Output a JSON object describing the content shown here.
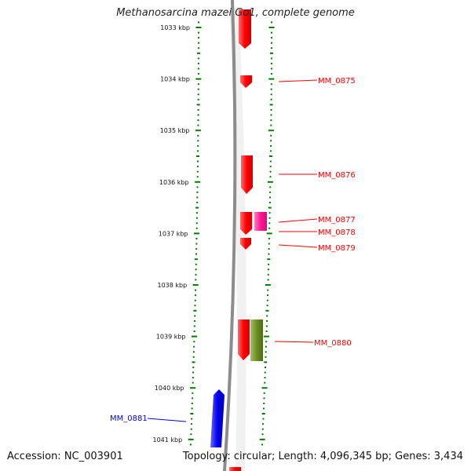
{
  "title": "Methanosarcina mazei Go1, complete genome",
  "footer": {
    "accession": "Accession: NC_003901",
    "summary": "Topology: circular; Length: 4,096,345 bp; Genes: 3,434"
  },
  "colors": {
    "forward_gene": "#ff0000",
    "reverse_gene": "#0000ee",
    "pink_feature": "#ff1493",
    "olive_feature": "#6b8e23",
    "tick": "#007a00",
    "backbone": "#8c8c8c"
  },
  "ticks": [
    {
      "label": "1033 kbp",
      "kbp": 1033
    },
    {
      "label": "1034 kbp",
      "kbp": 1034
    },
    {
      "label": "1035 kbp",
      "kbp": 1035
    },
    {
      "label": "1036 kbp",
      "kbp": 1036
    },
    {
      "label": "1037 kbp",
      "kbp": 1037
    },
    {
      "label": "1038 kbp",
      "kbp": 1038
    },
    {
      "label": "1039 kbp",
      "kbp": 1039
    },
    {
      "label": "1040 kbp",
      "kbp": 1040
    },
    {
      "label": "1041 kbp",
      "kbp": 1041
    }
  ],
  "genes": [
    {
      "name": "MM_0875",
      "strand": "forward",
      "color_key": "forward_gene"
    },
    {
      "name": "MM_0876",
      "strand": "forward",
      "color_key": "forward_gene"
    },
    {
      "name": "MM_0877",
      "strand": "forward",
      "color_key": "forward_gene"
    },
    {
      "name": "MM_0878",
      "strand": "forward",
      "color_key": "forward_gene"
    },
    {
      "name": "MM_0879",
      "strand": "forward",
      "color_key": "forward_gene"
    },
    {
      "name": "MM_0880",
      "strand": "forward",
      "color_key": "forward_gene"
    },
    {
      "name": "MM_0881",
      "strand": "reverse",
      "color_key": "reverse_gene"
    }
  ]
}
